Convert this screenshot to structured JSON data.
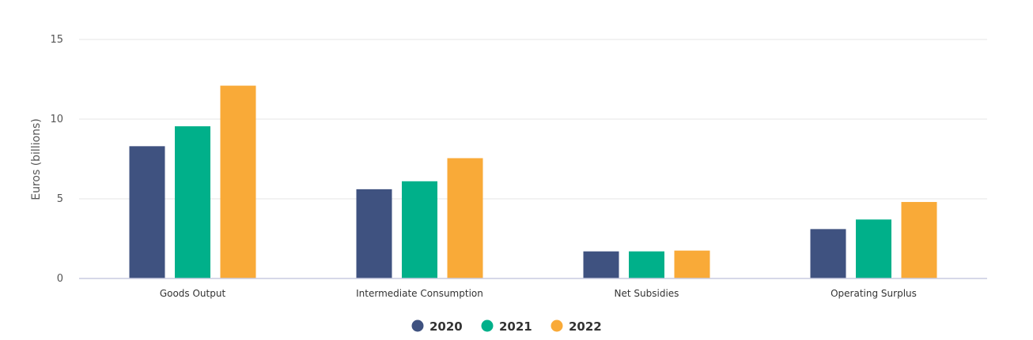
{
  "chart_data": {
    "type": "bar",
    "ylabel": "Euros (billions)",
    "xlabel": "",
    "ylim": [
      0,
      15
    ],
    "yticks": [
      0,
      5,
      10,
      15
    ],
    "grid": true,
    "legend_position": "bottom-center",
    "categories": [
      "Goods Output",
      "Intermediate Consumption",
      "Net Subsidies",
      "Operating Surplus"
    ],
    "series": [
      {
        "name": "2020",
        "color": "#3f5280",
        "values": [
          8.3,
          5.6,
          1.7,
          3.1
        ]
      },
      {
        "name": "2021",
        "color": "#00b08a",
        "values": [
          9.55,
          6.1,
          1.7,
          3.7
        ]
      },
      {
        "name": "2022",
        "color": "#f9aa38",
        "values": [
          12.1,
          7.55,
          1.75,
          4.8
        ]
      }
    ]
  }
}
